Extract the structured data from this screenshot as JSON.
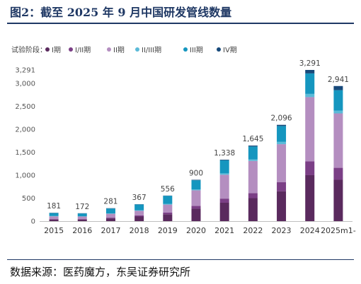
{
  "header": {
    "title": "图2：截至 2025 年 9 月中国研发管线数量"
  },
  "source": "数据来源：医药魔方，东吴证券研究所",
  "legend_label": "试验阶段：",
  "chart_data": {
    "type": "bar",
    "stacked": true,
    "categories": [
      "2015",
      "2016",
      "2017",
      "2018",
      "2019",
      "2020",
      "2021",
      "2022",
      "2023",
      "2024",
      "2025m1-"
    ],
    "totals": [
      181,
      172,
      281,
      367,
      556,
      900,
      1338,
      1645,
      2096,
      3291,
      2941
    ],
    "series": [
      {
        "name": "I期",
        "color": "#5a2a5e",
        "values": [
          35,
          35,
          60,
          100,
          150,
          270,
          400,
          500,
          650,
          1000,
          900
        ]
      },
      {
        "name": "I/II期",
        "color": "#7b3f86",
        "values": [
          10,
          10,
          15,
          25,
          35,
          60,
          90,
          110,
          200,
          300,
          260
        ]
      },
      {
        "name": "II期",
        "color": "#b48ec0",
        "values": [
          60,
          55,
          85,
          100,
          175,
          340,
          520,
          700,
          825,
          1400,
          1185
        ]
      },
      {
        "name": "II/III期",
        "color": "#5bbad8",
        "values": [
          6,
          5,
          8,
          10,
          15,
          20,
          30,
          35,
          50,
          70,
          60
        ]
      },
      {
        "name": "III期",
        "color": "#1596bf",
        "values": [
          65,
          62,
          107,
          127,
          176,
          200,
          285,
          280,
          345,
          446,
          446
        ]
      },
      {
        "name": "IV期",
        "color": "#17497a",
        "values": [
          5,
          5,
          6,
          5,
          5,
          10,
          13,
          20,
          26,
          75,
          90
        ]
      }
    ],
    "y_tick_labels": [
      "0",
      "500",
      "1,000",
      "1,500",
      "2,000",
      "2,500",
      "3,000",
      "3,291"
    ],
    "y_ticks": [
      0,
      500,
      1000,
      1500,
      2000,
      2500,
      3000,
      3291
    ],
    "ylim": [
      0,
      3291
    ],
    "grid": false,
    "legend_position": "top-left"
  }
}
